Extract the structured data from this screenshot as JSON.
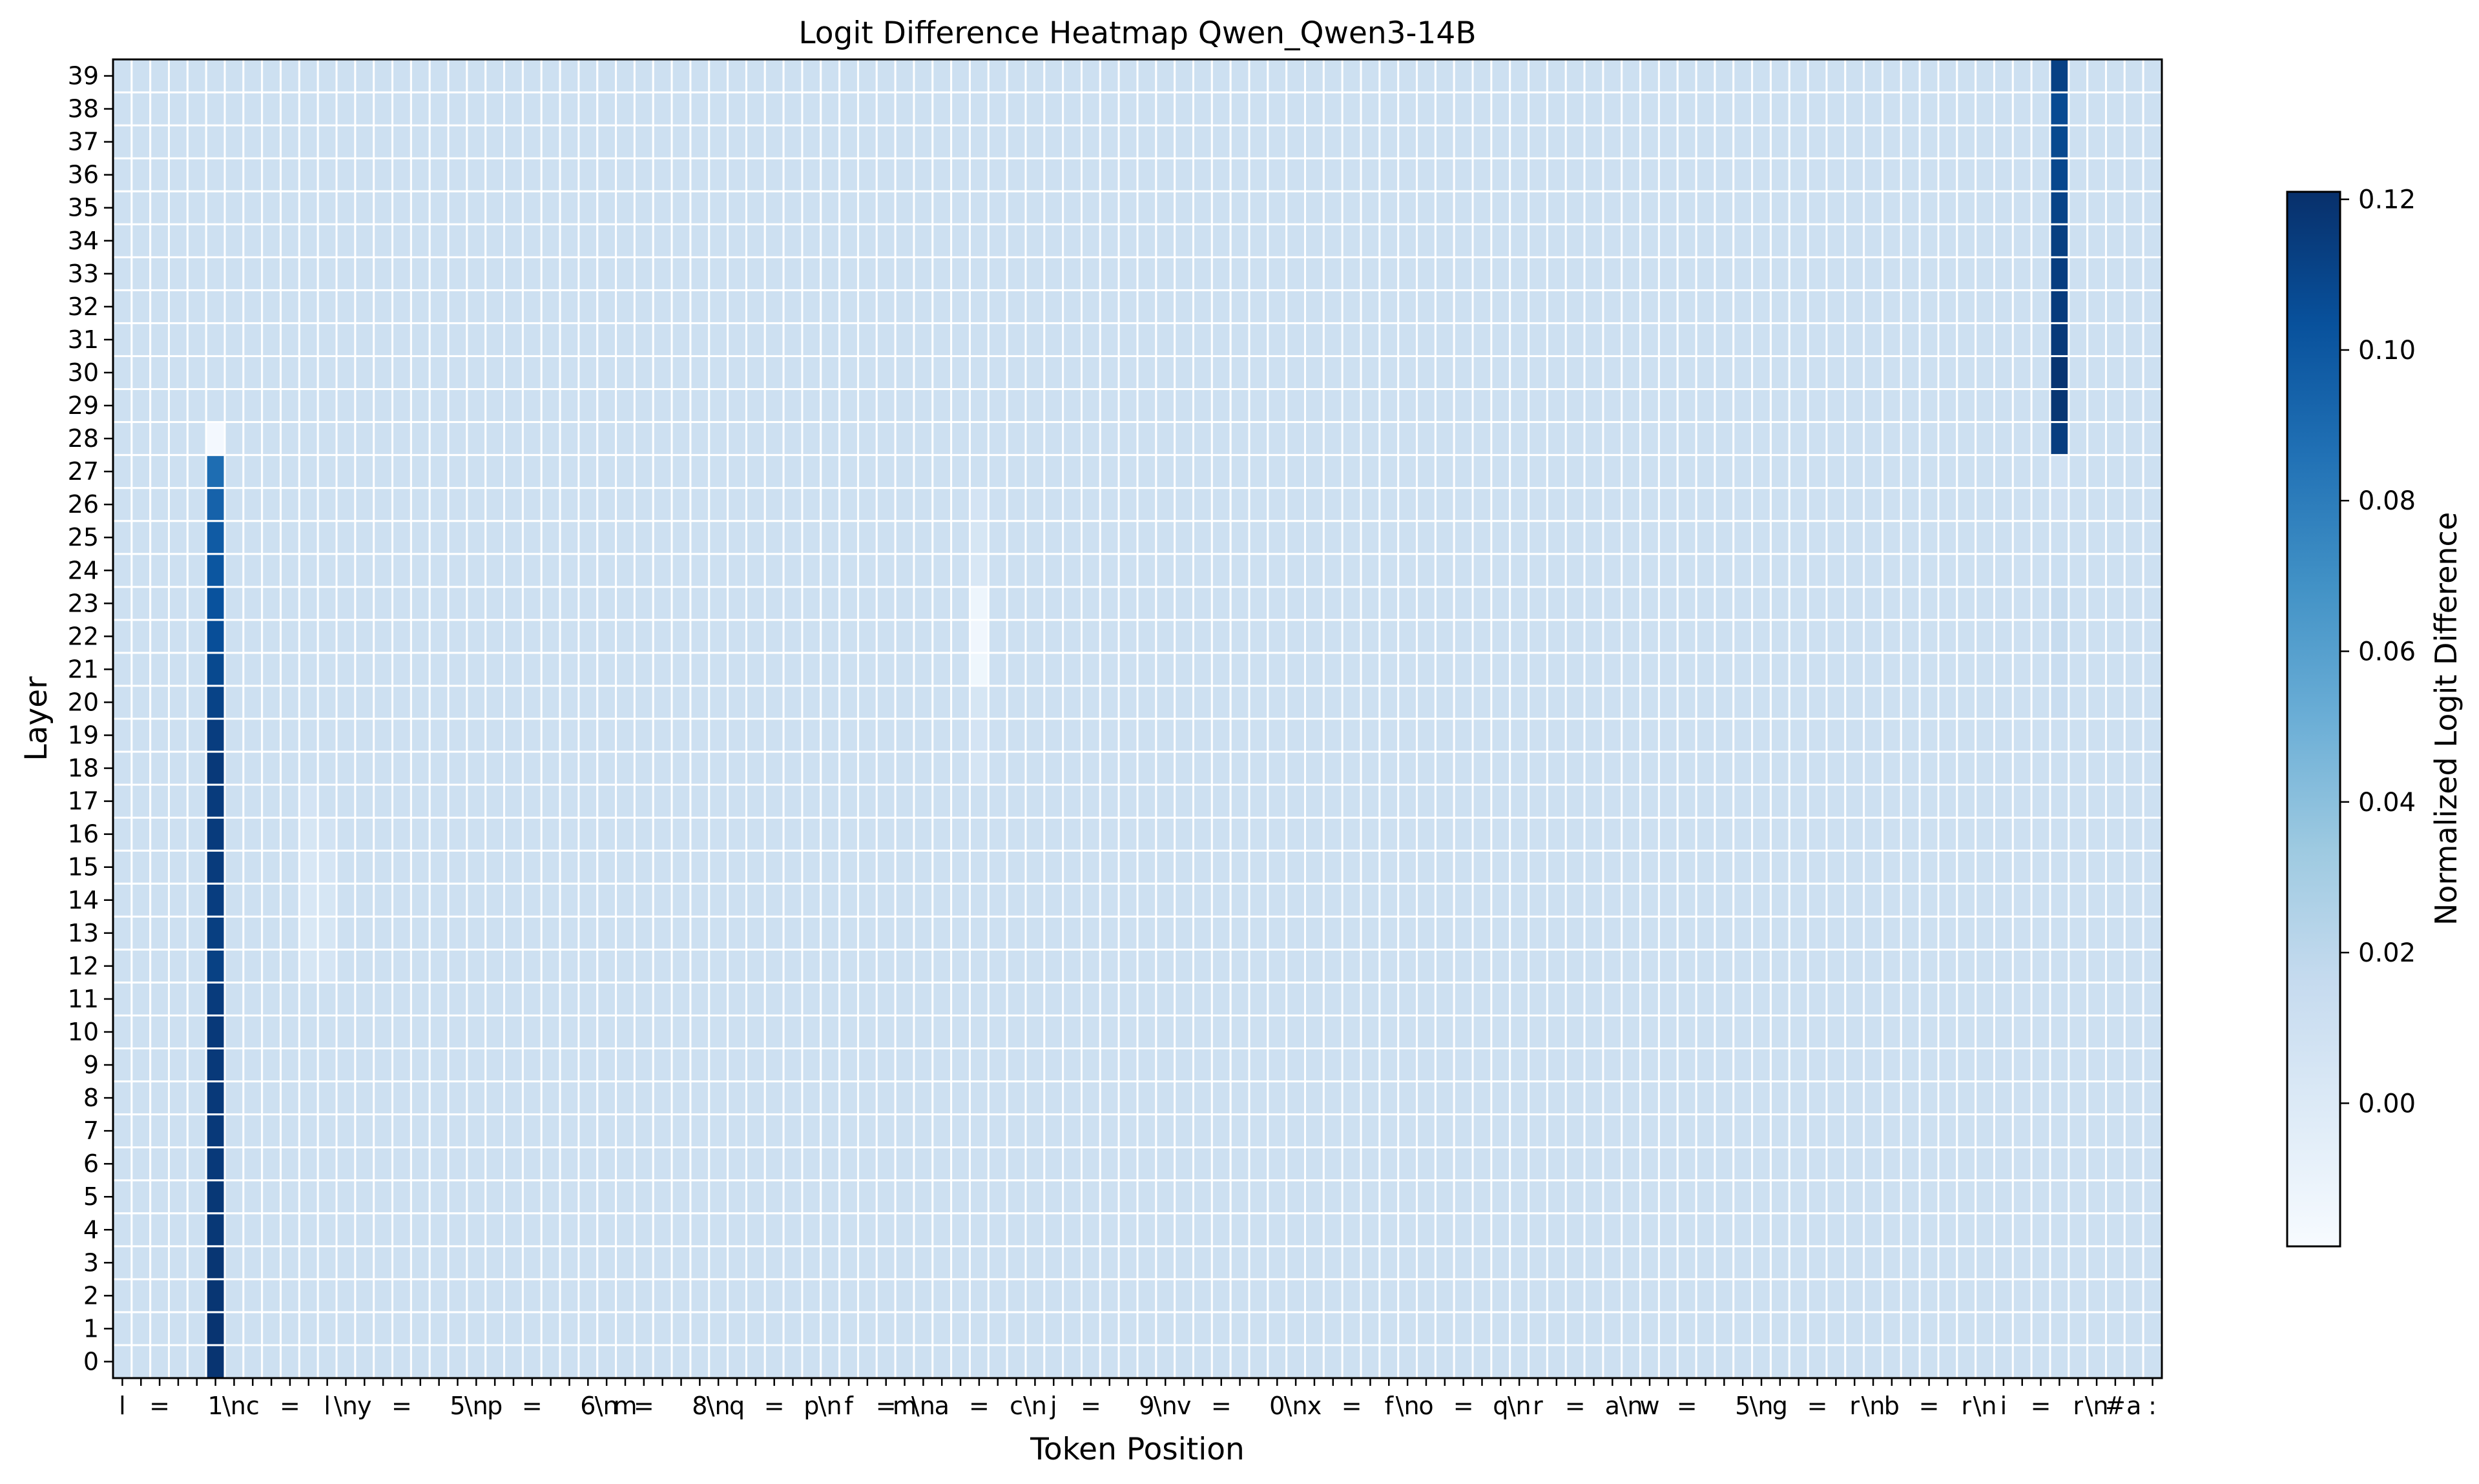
{
  "chart_data": {
    "type": "heatmap",
    "title": "Logit Difference Heatmap Qwen_Qwen3-14B",
    "xlabel": "Token Position",
    "ylabel": "Layer",
    "n_layers": 40,
    "x_tokens": [
      "l",
      " ",
      "=",
      " ",
      " ",
      "1",
      "\\n",
      "c",
      " ",
      "=",
      " ",
      "l",
      "\\n",
      "y",
      " ",
      "=",
      " ",
      " ",
      "5",
      "\\n",
      "p",
      " ",
      "=",
      " ",
      " ",
      "6",
      "\\n",
      "m",
      "=",
      " ",
      " ",
      "8",
      "\\n",
      "q",
      " ",
      "=",
      " ",
      "p",
      "\\n",
      "f",
      " ",
      "=",
      "m",
      "\\n",
      "a",
      " ",
      "=",
      " ",
      "c",
      "\\n",
      "j",
      " ",
      "=",
      " ",
      " ",
      "9",
      "\\n",
      "v",
      " ",
      "=",
      " ",
      " ",
      "0",
      "\\n",
      "x",
      " ",
      "=",
      " ",
      "f",
      "\\n",
      "o",
      " ",
      "=",
      " ",
      "q",
      "\\n",
      "r",
      " ",
      "=",
      " ",
      "a",
      "\\n",
      "w",
      " ",
      "=",
      " ",
      " ",
      "5",
      "\\n",
      "g",
      " ",
      "=",
      " ",
      "r",
      "\\n",
      "b",
      " ",
      "=",
      " ",
      "r",
      "\\n",
      "i",
      " ",
      "=",
      " ",
      "r",
      "\\n",
      "#",
      "a",
      ":"
    ],
    "y_tick_labels": [
      "0",
      "1",
      "2",
      "3",
      "4",
      "5",
      "6",
      "7",
      "8",
      "9",
      "10",
      "11",
      "12",
      "13",
      "14",
      "15",
      "16",
      "17",
      "18",
      "19",
      "20",
      "21",
      "22",
      "23",
      "24",
      "25",
      "26",
      "27",
      "28",
      "29",
      "30",
      "31",
      "32",
      "33",
      "34",
      "35",
      "36",
      "37",
      "38",
      "39"
    ],
    "cmap": "Blues",
    "background_value": 0.011,
    "vmin": -0.019,
    "vmax": 0.121,
    "highlights": [
      {
        "x_index": 5,
        "layers": [
          0,
          27
        ],
        "values_by_layer": [
          0.119,
          0.119,
          0.118,
          0.118,
          0.117,
          0.117,
          0.116,
          0.116,
          0.116,
          0.116,
          0.116,
          0.115,
          0.112,
          0.113,
          0.114,
          0.115,
          0.115,
          0.115,
          0.116,
          0.114,
          0.111,
          0.108,
          0.105,
          0.103,
          0.101,
          0.098,
          0.094,
          0.088
        ]
      },
      {
        "x_index": 5,
        "layers": [
          28,
          28
        ],
        "values_by_layer": [
          -0.016
        ]
      },
      {
        "x_index": 104,
        "layers": [
          28,
          39
        ],
        "values_by_layer": [
          0.114,
          0.118,
          0.119,
          0.116,
          0.115,
          0.114,
          0.113,
          0.111,
          0.109,
          0.108,
          0.107,
          0.112
        ]
      },
      {
        "x_index": 104,
        "layers": [
          20,
          27
        ],
        "values_by_layer": [
          0.014,
          0.014,
          0.015,
          0.015,
          0.012,
          0.011,
          0.009,
          0.008
        ]
      },
      {
        "x_index": 46,
        "layers": [
          21,
          23
        ],
        "values_by_layer": [
          -0.013,
          -0.014,
          -0.012
        ]
      },
      {
        "x_index": 46,
        "layers": [
          24,
          26
        ],
        "values_by_layer": [
          0.003,
          0.004,
          0.006
        ]
      },
      {
        "x_index": 46,
        "layers": [
          18,
          20
        ],
        "values_by_layer": [
          0.005,
          0.006,
          0.004
        ]
      },
      {
        "x_index": 10,
        "layers": [
          12,
          17
        ],
        "values_by_layer": [
          0.004,
          0.002,
          0.003,
          0.003,
          0.004,
          0.006
        ]
      },
      {
        "x_index": 11,
        "layers": [
          12,
          16
        ],
        "values_by_layer": [
          0.005,
          0.004,
          0.004,
          0.005,
          0.007
        ]
      }
    ],
    "colorbar": {
      "label": "Normalized Logit Difference",
      "ticks": [
        "0.00",
        "0.02",
        "0.04",
        "0.06",
        "0.08",
        "0.10",
        "0.12"
      ],
      "tick_values": [
        0.0,
        0.02,
        0.04,
        0.06,
        0.08,
        0.1,
        0.12
      ]
    }
  }
}
